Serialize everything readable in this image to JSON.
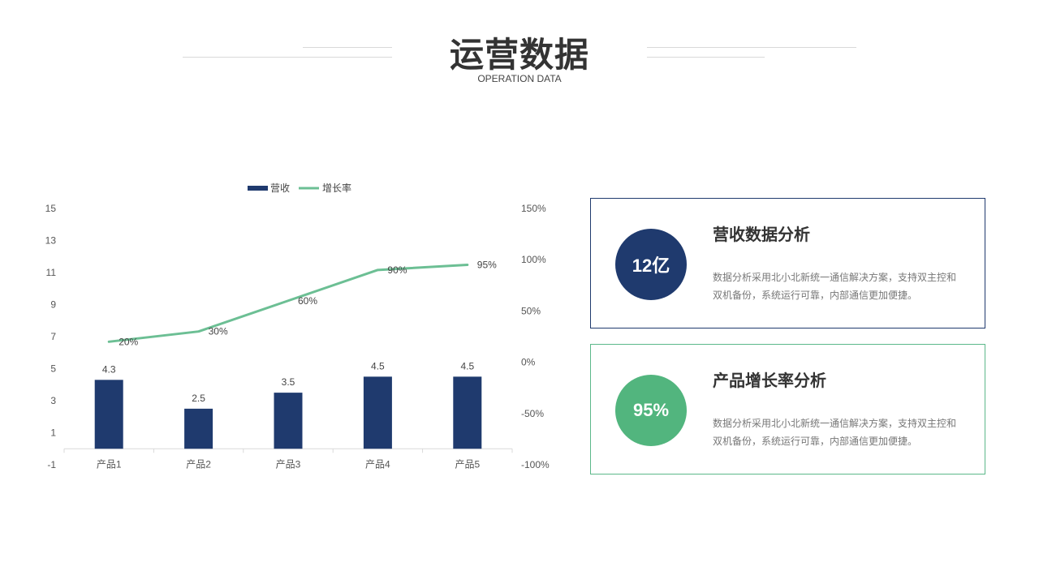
{
  "header": {
    "title": "运营数据",
    "subtitle": "OPERATION DATA"
  },
  "chart_data": {
    "type": "bar",
    "categories": [
      "产品1",
      "产品2",
      "产品3",
      "产品4",
      "产品5"
    ],
    "series": [
      {
        "name": "营收",
        "type": "bar",
        "axis": "left",
        "values": [
          4.3,
          2.5,
          3.5,
          4.5,
          4.5
        ],
        "labels": [
          "4.3",
          "2.5",
          "3.5",
          "4.5",
          "4.5"
        ],
        "color": "#1f3a6e"
      },
      {
        "name": "增长率",
        "type": "line",
        "axis": "right",
        "values": [
          20,
          30,
          60,
          90,
          95
        ],
        "labels": [
          "20%",
          "30%",
          "60%",
          "90%",
          "95%"
        ],
        "color": "#6cbf94"
      }
    ],
    "y_left": {
      "range": [
        -1,
        15
      ],
      "ticks": [
        "-1",
        "1",
        "3",
        "5",
        "7",
        "9",
        "11",
        "13",
        "15"
      ]
    },
    "y_right": {
      "range": [
        -100,
        150
      ],
      "ticks": [
        "-100%",
        "-50%",
        "0%",
        "50%",
        "100%",
        "150%"
      ]
    },
    "legend": "top-center",
    "grid": false
  },
  "cards": [
    {
      "value": "12亿",
      "title": "营收数据分析",
      "desc": "数据分析采用北小北新统一通信解决方案，支持双主控和双机备份，系统运行可靠，内部通信更加便捷。",
      "color": "#1f3a6e"
    },
    {
      "value": "95%",
      "title": "产品增长率分析",
      "desc": "数据分析采用北小北新统一通信解决方案，支持双主控和双机备份，系统运行可靠，内部通信更加便捷。",
      "color": "#52b57e"
    }
  ]
}
